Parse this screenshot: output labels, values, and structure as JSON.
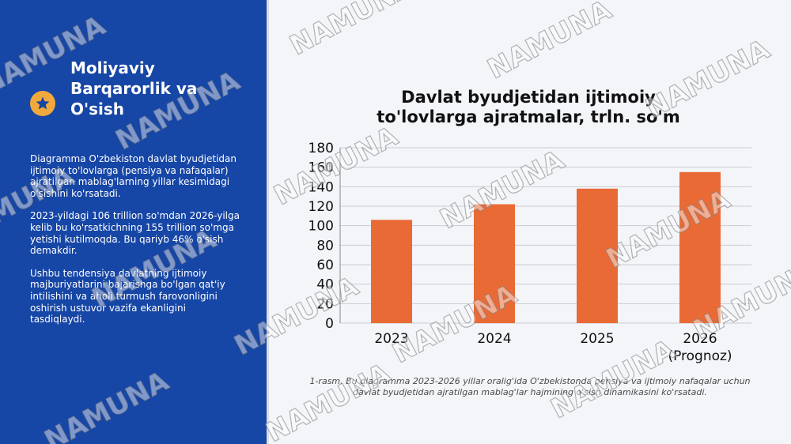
{
  "sidebar": {
    "title": "Moliyaviy Barqarorlik va O'sish",
    "icon": "star-icon",
    "accent_color": "#f2a93b",
    "background_color": "#1646a6",
    "paragraphs": [
      "Diagramma O'zbekiston davlat byudjetidan ijtimoiy to'lovlarga (pensiya va nafaqalar) ajratilgan mablag'larning yillar kesimidagi o'sishini ko'rsatadi.",
      "2023-yildagi 106 trillion so'mdan 2026-yilga kelib bu ko'rsatkichning 155 trillion so'mga yetishi kutilmoqda. Bu qariyb 46% o'sish demakdir.",
      "Ushbu tendensiya davlatning ijtimoiy majburiyatlarini bajarishga bo'lgan qat'iy intilishini va aholi turmush farovonligini oshirish ustuvor vazifa ekanligini tasdiqlaydi."
    ]
  },
  "chart_data": {
    "type": "bar",
    "title": "Davlat byudjetidan ijtimoiy to'lovlarga ajratmalar, trln. so'm",
    "categories": [
      "2023",
      "2024",
      "2025",
      "2026 (Prognoz)"
    ],
    "values": [
      106,
      122,
      138,
      155
    ],
    "ylim": [
      0,
      180
    ],
    "yticks": [
      0,
      20,
      40,
      60,
      80,
      100,
      120,
      140,
      160,
      180
    ],
    "xlabel": "",
    "ylabel": "",
    "grid": true,
    "bar_color": "#ea6a35"
  },
  "caption": "1-rasm. Bu diagramma 2023-2026 yillar oralig'ida O'zbekistonda pensiya va ijtimoiy nafaqalar uchun davlat byudjetidan ajratilgan mablag'lar hajmining o'sish dinamikasini ko'rsatadi.",
  "watermark": "NAMUNA"
}
